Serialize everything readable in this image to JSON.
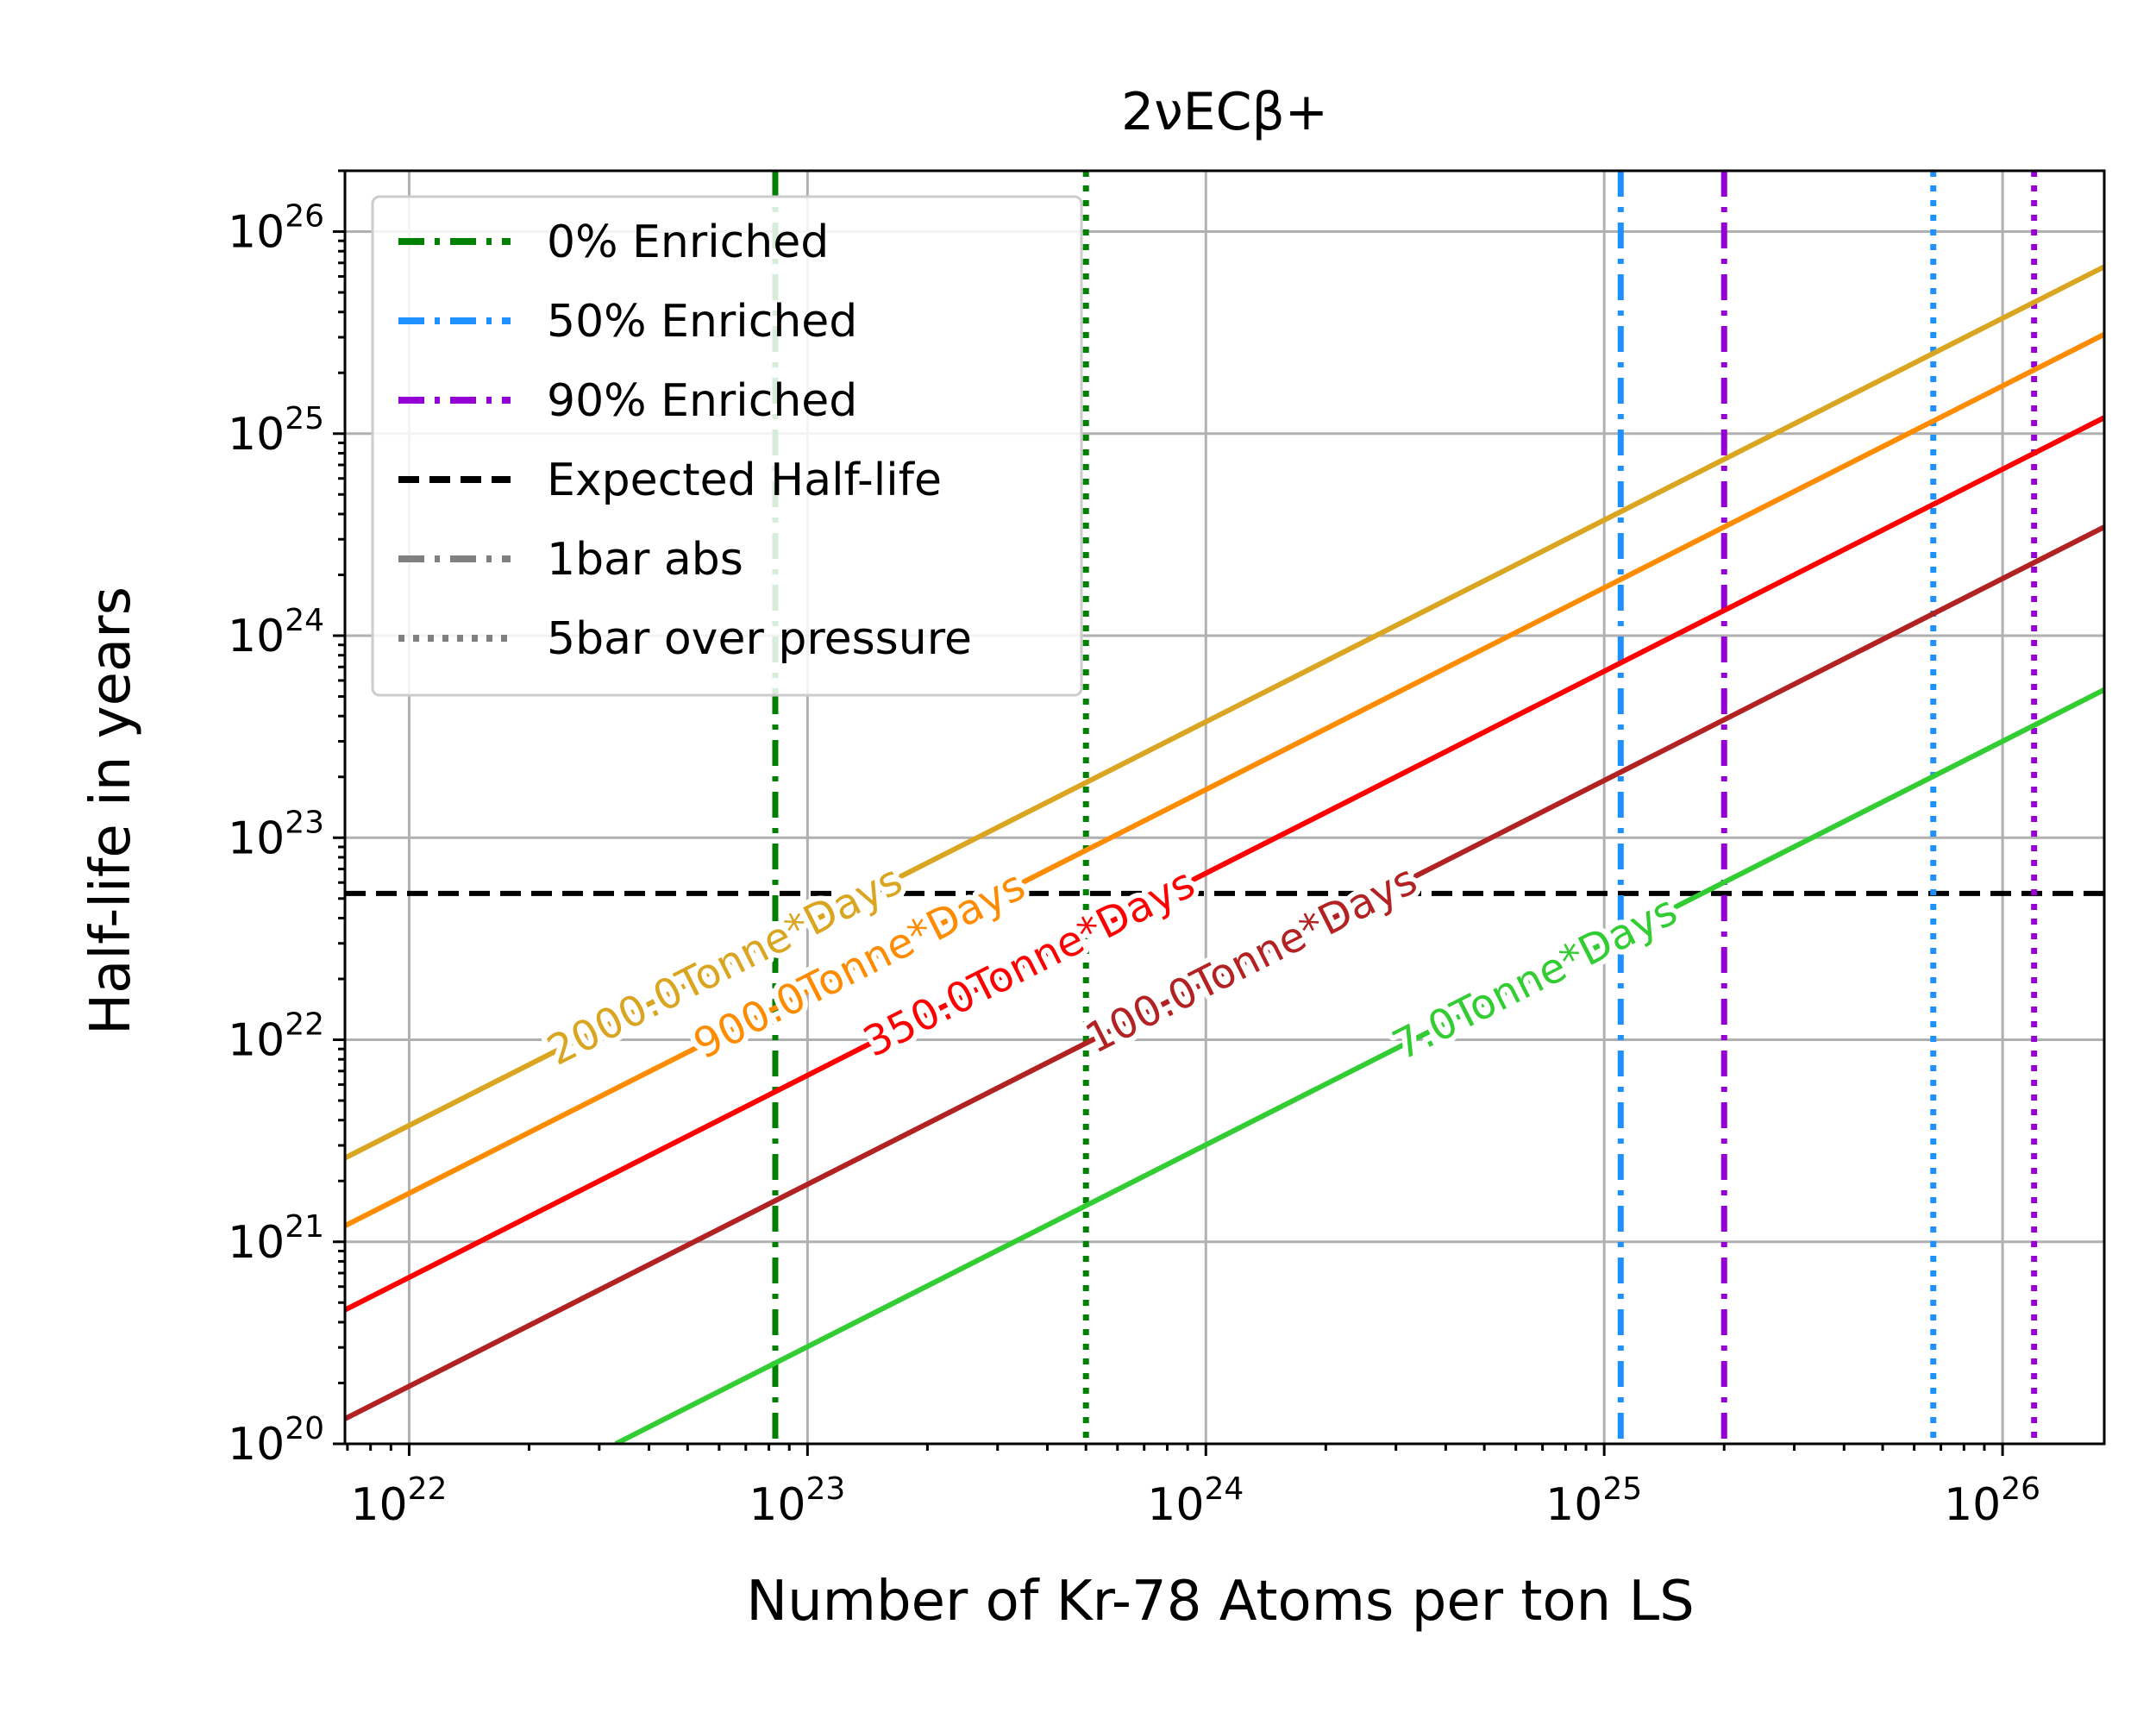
{
  "chart_data": {
    "type": "line",
    "title": "2νECβ+",
    "xlabel": "Number of Kr-78 Atoms per ton LS",
    "ylabel": "Half-life in years",
    "xscale": "log",
    "yscale": "log",
    "xlim": [
      6.9e+21,
      1.8e+26
    ],
    "ylim": [
      1e+20,
      2e+26
    ],
    "grid": true,
    "x_ticks": [
      {
        "value": 1e+22,
        "base": "10",
        "exp": "22"
      },
      {
        "value": 1e+23,
        "base": "10",
        "exp": "23"
      },
      {
        "value": 1e+24,
        "base": "10",
        "exp": "24"
      },
      {
        "value": 1e+25,
        "base": "10",
        "exp": "25"
      },
      {
        "value": 1e+26,
        "base": "10",
        "exp": "26"
      }
    ],
    "y_ticks": [
      {
        "value": 1e+20,
        "base": "10",
        "exp": "20"
      },
      {
        "value": 1e+21,
        "base": "10",
        "exp": "21"
      },
      {
        "value": 1e+22,
        "base": "10",
        "exp": "22"
      },
      {
        "value": 1e+23,
        "base": "10",
        "exp": "23"
      },
      {
        "value": 1e+24,
        "base": "10",
        "exp": "24"
      },
      {
        "value": 1e+25,
        "base": "10",
        "exp": "25"
      },
      {
        "value": 1e+26,
        "base": "10",
        "exp": "26"
      }
    ],
    "exposure_lines": [
      {
        "name": "2000.0Tonne*Days",
        "color": "#daa520",
        "points": [
          [
            6.9e+21,
            2.6e+21
          ],
          [
            1.8e+26,
            6.7e+25
          ]
        ],
        "label_at": [
          6.2e+22,
          1.6e+22
        ]
      },
      {
        "name": "900.0Tonne*Days",
        "color": "#ff8c00",
        "points": [
          [
            6.9e+21,
            1.2e+21
          ],
          [
            1.8e+26,
            3.1e+25
          ]
        ],
        "label_at": [
          1.35e+23,
          1.6e+22
        ]
      },
      {
        "name": "350.0Tonne*Days",
        "color": "#ff0000",
        "points": [
          [
            6.9e+21,
            4.6e+20
          ],
          [
            1.8e+26,
            1.2e+25
          ]
        ],
        "label_at": [
          3.6e+23,
          1.55e+22
        ]
      },
      {
        "name": "100.0Tonne*Days",
        "color": "#b22222",
        "points": [
          [
            6.9e+21,
            1.33e+20
          ],
          [
            1.8e+26,
            3.45e+24
          ]
        ],
        "label_at": [
          1.3e+24,
          1.55e+22
        ]
      },
      {
        "name": "7.0Tonne*Days",
        "color": "#32cd32",
        "points": [
          [
            3.3e+22,
            1e+20
          ],
          [
            1.8e+26,
            5.4e+23
          ]
        ],
        "label_at": [
          6.7e+24,
          1.55e+22
        ]
      }
    ],
    "expected_half_life": {
      "value": 5.3e+22,
      "color": "#000000"
    },
    "enrichment_lines": [
      {
        "x": 8.3e+22,
        "color": "#008000",
        "style": "dashdot"
      },
      {
        "x": 5e+23,
        "color": "#008000",
        "style": "dotted"
      },
      {
        "x": 1.1e+25,
        "color": "#1e90ff",
        "style": "dashdot"
      },
      {
        "x": 6.7e+25,
        "color": "#1e90ff",
        "style": "dotted"
      },
      {
        "x": 2e+25,
        "color": "#9400d3",
        "style": "dashdot"
      },
      {
        "x": 1.2e+26,
        "color": "#9400d3",
        "style": "dotted"
      }
    ],
    "legend": {
      "position": "upper left",
      "entries": [
        {
          "label": "0%   Enriched",
          "color": "#008000",
          "style": "dashdot"
        },
        {
          "label": "50% Enriched",
          "color": "#1e90ff",
          "style": "dashdot"
        },
        {
          "label": "90% Enriched",
          "color": "#9400d3",
          "style": "dashdot"
        },
        {
          "label": "Expected Half-life",
          "color": "#000000",
          "style": "dashed"
        },
        {
          "label": "1bar abs",
          "color": "#808080",
          "style": "dashdot"
        },
        {
          "label": "5bar over pressure",
          "color": "#808080",
          "style": "dotted"
        }
      ]
    }
  }
}
